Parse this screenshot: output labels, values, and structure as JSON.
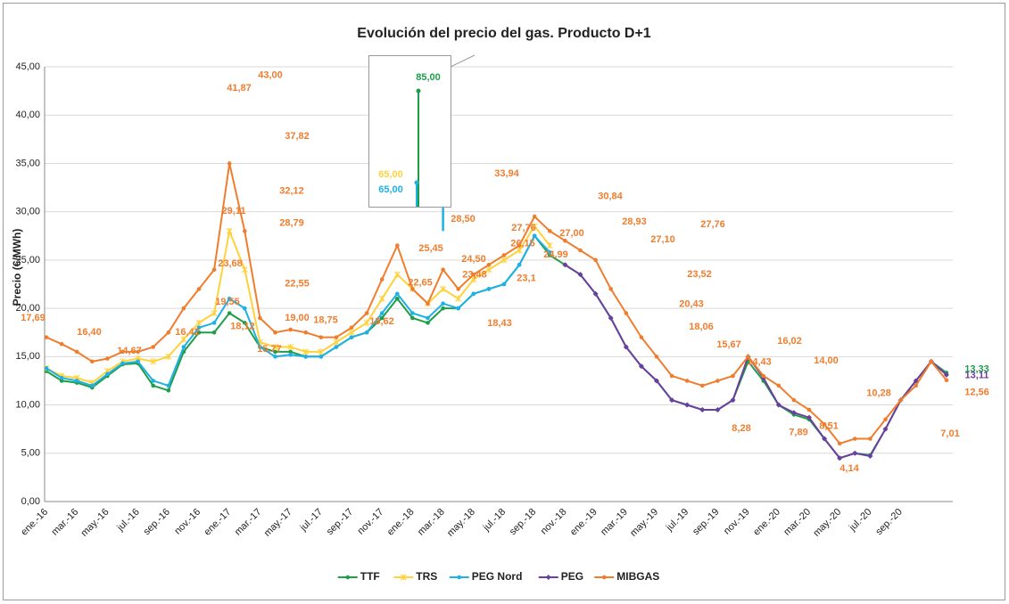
{
  "chart_data": {
    "type": "line",
    "title": "Evolución del precio del gas. Producto D+1",
    "y_label": "Precio (€/MWh)",
    "categories": [
      "ene.-16",
      null,
      "mar.-16",
      null,
      "may.-16",
      null,
      "jul.-16",
      null,
      "sep.-16",
      null,
      "nov.-16",
      null,
      "ene.-17",
      null,
      "mar.-17",
      null,
      "may.-17",
      null,
      "jul.-17",
      null,
      "sep.-17",
      null,
      "nov.-17",
      null,
      "ene.-18",
      null,
      "mar.-18",
      null,
      "may.-18",
      null,
      "jul.-18",
      null,
      "sep.-18",
      null,
      "nov.-18",
      null,
      "ene.-19",
      null,
      "mar.-19",
      null,
      "may.-19",
      null,
      "jul.-19",
      null,
      "sep.-19",
      null,
      "nov.-19",
      null,
      "ene.-20",
      null,
      "mar.-20",
      null,
      "may.-20",
      null,
      "jul.-20",
      null,
      "sep.-20",
      null,
      null,
      null
    ],
    "ylim": [
      0,
      45
    ],
    "yticks": [
      {
        "value": 0,
        "label": "0,00"
      },
      {
        "value": 5,
        "label": "5,00"
      },
      {
        "value": 10,
        "label": "10,00"
      },
      {
        "value": 15,
        "label": "15,00"
      },
      {
        "value": 20,
        "label": "20,00"
      },
      {
        "value": 25,
        "label": "25,00"
      },
      {
        "value": 30,
        "label": "30,00"
      },
      {
        "value": 35,
        "label": "35,00"
      },
      {
        "value": 40,
        "label": "40,00"
      },
      {
        "value": 45,
        "label": "45,00"
      }
    ],
    "grid": true,
    "legend": "bottom",
    "series": [
      {
        "name": "TTF",
        "color": "#1e9e4a",
        "marker": "circle",
        "values": [
          13.5,
          12.5,
          12.3,
          11.8,
          13,
          14.2,
          14.3,
          12,
          11.5,
          15.5,
          17.5,
          17.5,
          19.5,
          18.5,
          16,
          15.5,
          15.5,
          15,
          15,
          16,
          17,
          17.5,
          19,
          21,
          19,
          18.5,
          20,
          20,
          21.5,
          22,
          22.5,
          24.5,
          27.5,
          25.5,
          24.5,
          23.5,
          21.5,
          19,
          16,
          14,
          12.5,
          10.5,
          10,
          9.5,
          9.5,
          10.5,
          14.5,
          12.5,
          10,
          9,
          8.5,
          6.5,
          4.5,
          5,
          4.8,
          7.5,
          10.5,
          12.5,
          14.5,
          13.33
        ]
      },
      {
        "name": "TRS",
        "color": "#ffd23c",
        "marker": "cross",
        "values": [
          13.8,
          13,
          12.8,
          12.3,
          13.5,
          14.5,
          14.8,
          14.5,
          15,
          16.8,
          18.5,
          19.5,
          28,
          24,
          16.5,
          16,
          16,
          15.5,
          15.5,
          16.5,
          17.5,
          18.5,
          21,
          23.5,
          22,
          20.5,
          22,
          21,
          23,
          24,
          25,
          26,
          28.5,
          26.5,
          null,
          null,
          null,
          null,
          null,
          null,
          null,
          null,
          null,
          null,
          null,
          null,
          null,
          null,
          null,
          null,
          null,
          null,
          null,
          null,
          null,
          null,
          null,
          null,
          null,
          null
        ]
      },
      {
        "name": "PEG Nord",
        "color": "#1fb0e6",
        "marker": "circle",
        "values": [
          13.8,
          12.8,
          12.5,
          12,
          13.2,
          14.3,
          14.5,
          12.5,
          12,
          16,
          18,
          18.5,
          21,
          20,
          16,
          15,
          15.2,
          15,
          15,
          16,
          17,
          17.5,
          19.5,
          21.5,
          19.5,
          19,
          20.5,
          20,
          21.5,
          22,
          22.5,
          24.5,
          27.5,
          25.8,
          null,
          null,
          null,
          null,
          null,
          null,
          null,
          null,
          null,
          null,
          null,
          null,
          null,
          null,
          null,
          null,
          null,
          null,
          null,
          null,
          null,
          null,
          null,
          null,
          null,
          null
        ]
      },
      {
        "name": "PEG",
        "color": "#6b3fa0",
        "marker": "diamond",
        "values": [
          null,
          null,
          null,
          null,
          null,
          null,
          null,
          null,
          null,
          null,
          null,
          null,
          null,
          null,
          null,
          null,
          null,
          null,
          null,
          null,
          null,
          null,
          null,
          null,
          null,
          null,
          null,
          null,
          null,
          null,
          null,
          null,
          null,
          null,
          24.5,
          23.5,
          21.5,
          19,
          16,
          14,
          12.5,
          10.5,
          10,
          9.5,
          9.5,
          10.5,
          15,
          12.8,
          10,
          9.2,
          8.7,
          6.5,
          4.5,
          5,
          4.7,
          7.5,
          10.5,
          12.5,
          14.5,
          13.11
        ]
      },
      {
        "name": "MIBGAS",
        "color": "#f07d2e",
        "marker": "circle",
        "values": [
          17,
          16.3,
          15.5,
          14.5,
          14.8,
          15.5,
          15.5,
          16,
          17.5,
          20,
          22,
          24,
          35,
          28,
          19,
          17.5,
          17.8,
          17.5,
          17,
          17,
          18,
          19.5,
          23,
          26.5,
          22,
          20.5,
          24,
          22,
          23.5,
          24.5,
          25.5,
          26.5,
          29.5,
          28,
          27,
          26,
          25,
          22,
          19.5,
          17,
          15,
          13,
          12.5,
          12,
          12.5,
          13,
          15,
          13,
          12,
          10.5,
          9.5,
          8,
          6,
          6.5,
          6.5,
          8.5,
          10.5,
          12,
          14.5,
          12.56
        ]
      }
    ],
    "annotations": [
      {
        "value": 17.69,
        "label": "17,69",
        "color": "#f07d2e"
      },
      {
        "value": 16.4,
        "label": "16,40",
        "color": "#f07d2e"
      },
      {
        "value": 14.67,
        "label": "14,67",
        "color": "#f07d2e"
      },
      {
        "value": 16.42,
        "label": "16,42",
        "color": "#f07d2e"
      },
      {
        "value": 19.55,
        "label": "19,55",
        "color": "#f07d2e"
      },
      {
        "value": 23.68,
        "label": "23,68",
        "color": "#f07d2e"
      },
      {
        "value": 29.11,
        "label": "29,11",
        "color": "#f07d2e"
      },
      {
        "value": 41.87,
        "label": "41,87",
        "color": "#f07d2e"
      },
      {
        "value": 43,
        "label": "43,00",
        "color": "#f07d2e"
      },
      {
        "value": 37.82,
        "label": "37,82",
        "color": "#f07d2e"
      },
      {
        "value": 32.12,
        "label": "32,12",
        "color": "#f07d2e"
      },
      {
        "value": 28.79,
        "label": "28,79",
        "color": "#f07d2e"
      },
      {
        "value": 22.55,
        "label": "22,55",
        "color": "#f07d2e"
      },
      {
        "value": 18.12,
        "label": "18,12",
        "color": "#f07d2e"
      },
      {
        "value": 15.77,
        "label": "15,77",
        "color": "#f07d2e"
      },
      {
        "value": 19,
        "label": "19,00",
        "color": "#f07d2e"
      },
      {
        "value": 18.75,
        "label": "18,75",
        "color": "#f07d2e"
      },
      {
        "value": 18.62,
        "label": "18,62",
        "color": "#f07d2e"
      },
      {
        "value": 22.65,
        "label": "22,65",
        "color": "#f07d2e"
      },
      {
        "value": 25.45,
        "label": "25,45",
        "color": "#f07d2e"
      },
      {
        "value": 28.5,
        "label": "28,50",
        "color": "#f07d2e"
      },
      {
        "value": 24.5,
        "label": "24,50",
        "color": "#f07d2e"
      },
      {
        "value": 23.48,
        "label": "23,48",
        "color": "#f07d2e"
      },
      {
        "value": 33.94,
        "label": "33,94",
        "color": "#f07d2e"
      },
      {
        "value": 18.43,
        "label": "18,43",
        "color": "#f07d2e"
      },
      {
        "value": 27.76,
        "label": "27,76",
        "color": "#f07d2e"
      },
      {
        "value": 26.15,
        "label": "26,15",
        "color": "#f07d2e"
      },
      {
        "value": 23.1,
        "label": "23,1",
        "color": "#f07d2e"
      },
      {
        "value": 24.99,
        "label": "24,99",
        "color": "#f07d2e"
      },
      {
        "value": 27,
        "label": "27,00",
        "color": "#f07d2e"
      },
      {
        "value": 30.84,
        "label": "30,84",
        "color": "#f07d2e"
      },
      {
        "value": 28.93,
        "label": "28,93",
        "color": "#f07d2e"
      },
      {
        "value": 27.1,
        "label": "27,10",
        "color": "#f07d2e"
      },
      {
        "value": 27.76,
        "label": "27,76",
        "color": "#f07d2e"
      },
      {
        "value": 23.52,
        "label": "23,52",
        "color": "#f07d2e"
      },
      {
        "value": 20.43,
        "label": "20,43",
        "color": "#f07d2e"
      },
      {
        "value": 18.06,
        "label": "18,06",
        "color": "#f07d2e"
      },
      {
        "value": 15.67,
        "label": "15,67",
        "color": "#f07d2e"
      },
      {
        "value": 14.43,
        "label": "14,43",
        "color": "#f07d2e"
      },
      {
        "value": 8.28,
        "label": "8,28",
        "color": "#f07d2e"
      },
      {
        "value": 16.02,
        "label": "16,02",
        "color": "#f07d2e"
      },
      {
        "value": 7.89,
        "label": "7,89",
        "color": "#f07d2e"
      },
      {
        "value": 8.51,
        "label": "8,51",
        "color": "#f07d2e"
      },
      {
        "value": 14,
        "label": "14,00",
        "color": "#f07d2e"
      },
      {
        "value": 10.28,
        "label": "10,28",
        "color": "#f07d2e"
      },
      {
        "value": 4.14,
        "label": "4,14",
        "color": "#f07d2e"
      },
      {
        "value": 7.01,
        "label": "7,01",
        "color": "#f07d2e"
      },
      {
        "value": 12.56,
        "label": "12,56",
        "color": "#f07d2e"
      },
      {
        "value": 13.33,
        "label": "13,33",
        "color": "#1e9e4a"
      },
      {
        "value": 13.11,
        "label": "13,11",
        "color": "#6b3fa0"
      }
    ],
    "inset": [
      {
        "value": 85,
        "label": "85,00",
        "color": "#1e9e4a"
      },
      {
        "value": 65,
        "label": "65,00",
        "color": "#ffd23c"
      },
      {
        "value": 65,
        "label": "65,00",
        "color": "#1fb0e6"
      }
    ]
  }
}
